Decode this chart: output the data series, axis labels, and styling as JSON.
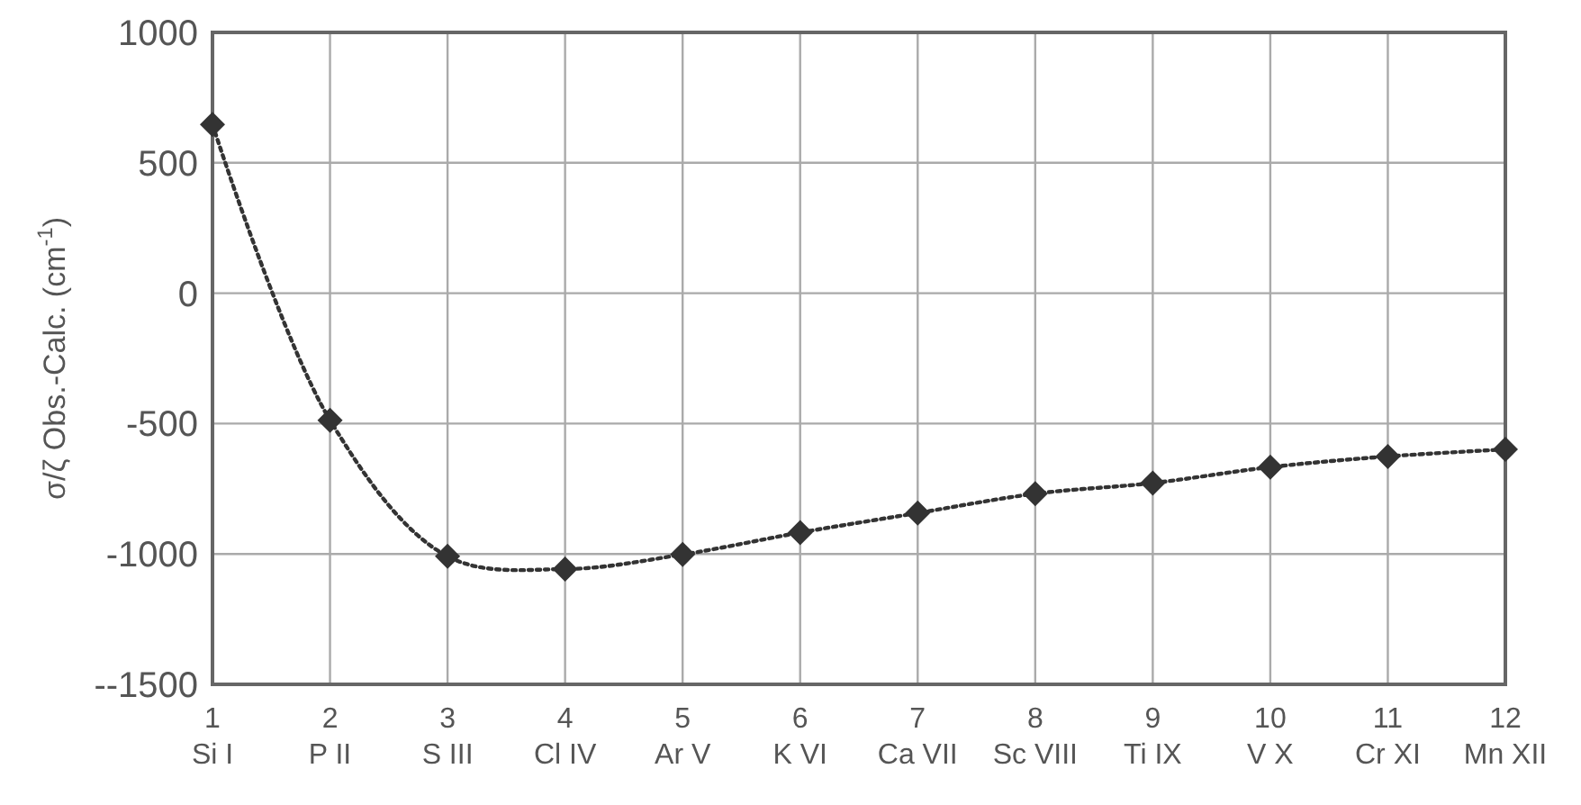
{
  "chart_data": {
    "type": "line",
    "ylabel": "σ/ζ Obs.-Calc. (cm$^{-1}$)",
    "x": [
      1,
      2,
      3,
      4,
      5,
      6,
      7,
      8,
      9,
      10,
      11,
      12
    ],
    "xlim": [
      1,
      12
    ],
    "xticks": [
      {
        "value": 1,
        "label": "1\nSi I"
      },
      {
        "value": 2,
        "label": "2\nP II"
      },
      {
        "value": 3,
        "label": "3\nS III"
      },
      {
        "value": 4,
        "label": "4\nCl IV"
      },
      {
        "value": 5,
        "label": "5\nAr V"
      },
      {
        "value": 6,
        "label": "6\nK VI"
      },
      {
        "value": 7,
        "label": "7\nCa VII"
      },
      {
        "value": 8,
        "label": "8\nSc VIII"
      },
      {
        "value": 9,
        "label": "9\nTi IX"
      },
      {
        "value": 10,
        "label": "10\nV X"
      },
      {
        "value": 11,
        "label": "11\nCr XI"
      },
      {
        "value": 12,
        "label": "12\nMn XII"
      }
    ],
    "ylim": [
      -1500,
      1000
    ],
    "yticks": [
      {
        "value": -1500,
        "label": "--1500"
      },
      -1000,
      -500,
      0,
      500,
      1000
    ],
    "series": [
      {
        "color": "#333333",
        "values": [
          647,
          -487,
          -1009,
          -1058,
          -1002,
          -918,
          -843,
          -769,
          -728,
          -667,
          -626,
          -599
        ]
      }
    ],
    "grid": true,
    "marker": "diamond",
    "line_style": "dotted"
  }
}
